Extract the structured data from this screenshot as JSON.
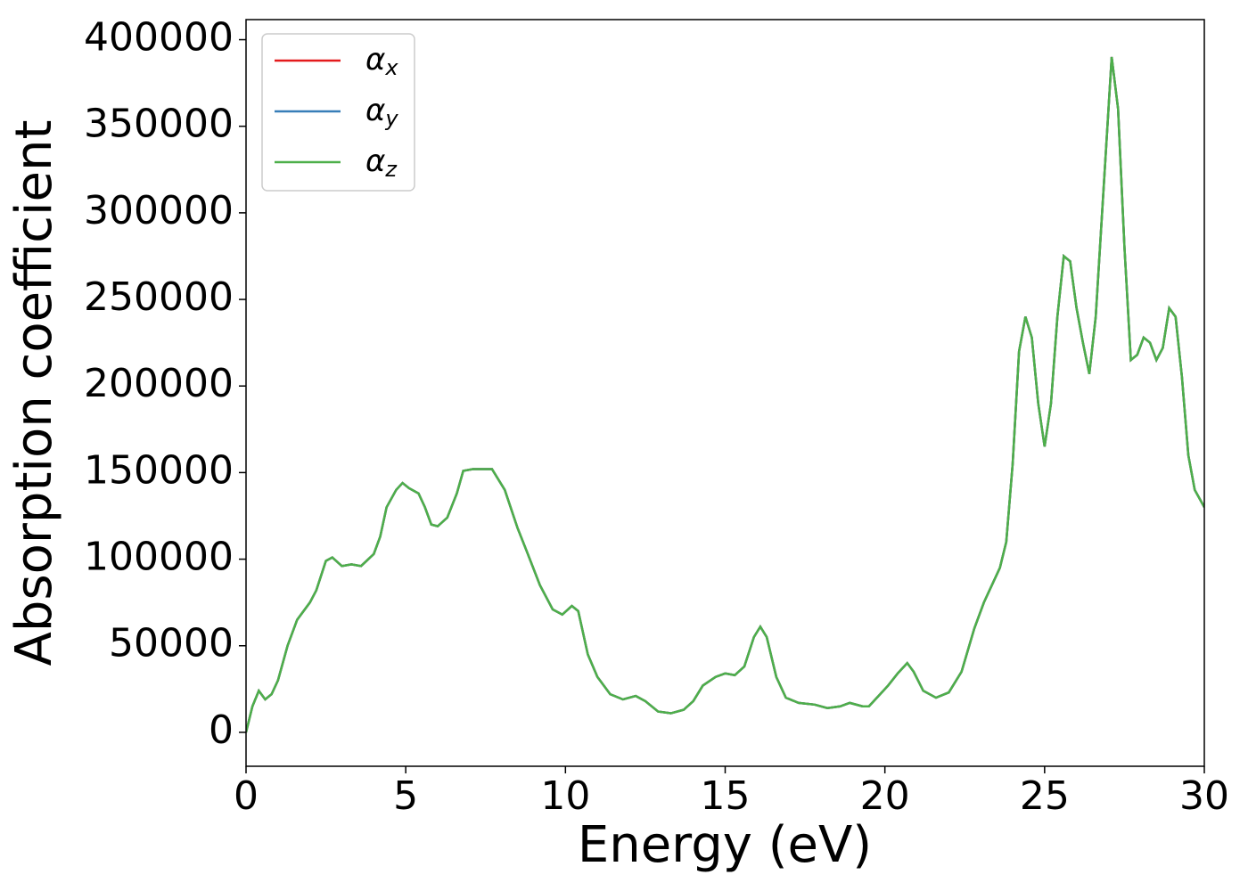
{
  "chart_data": {
    "type": "line",
    "xlabel": "Energy (eV)",
    "ylabel": "Absorption coefficient",
    "x": [
      0,
      0.2,
      0.4,
      0.6,
      0.8,
      1.0,
      1.3,
      1.6,
      2.0,
      2.2,
      2.5,
      2.7,
      3.0,
      3.3,
      3.6,
      4.0,
      4.2,
      4.4,
      4.7,
      4.9,
      5.1,
      5.4,
      5.6,
      5.8,
      6.0,
      6.3,
      6.6,
      6.8,
      7.1,
      7.4,
      7.7,
      8.1,
      8.5,
      8.8,
      9.2,
      9.6,
      9.9,
      10.2,
      10.4,
      10.7,
      11.0,
      11.4,
      11.8,
      12.2,
      12.5,
      12.9,
      13.3,
      13.7,
      14.0,
      14.3,
      14.7,
      15.0,
      15.3,
      15.6,
      15.9,
      16.1,
      16.3,
      16.6,
      16.9,
      17.3,
      17.8,
      18.2,
      18.6,
      18.9,
      19.3,
      19.5,
      19.8,
      20.1,
      20.4,
      20.7,
      20.9,
      21.2,
      21.6,
      22.0,
      22.4,
      22.8,
      23.1,
      23.6,
      23.8,
      24.0,
      24.2,
      24.4,
      24.6,
      24.8,
      25.0,
      25.2,
      25.4,
      25.6,
      25.8,
      26.0,
      26.2,
      26.4,
      26.6,
      26.9,
      27.1,
      27.3,
      27.5,
      27.7,
      27.9,
      28.1,
      28.3,
      28.5,
      28.7,
      28.9,
      29.1,
      29.3,
      29.5,
      29.7,
      30.0
    ],
    "series": [
      {
        "name": "αx",
        "color": "#e41a1c",
        "values": [
          0,
          15000,
          24000,
          19000,
          22000,
          30000,
          50000,
          65000,
          75000,
          82000,
          99000,
          101000,
          96000,
          97000,
          96000,
          103000,
          113000,
          130000,
          140000,
          144000,
          141000,
          138000,
          130000,
          120000,
          119000,
          124000,
          138000,
          151000,
          152000,
          152000,
          152000,
          140000,
          118000,
          104000,
          85000,
          71000,
          68000,
          73000,
          70000,
          45000,
          32000,
          22000,
          19000,
          21000,
          18000,
          12000,
          11000,
          13000,
          18000,
          27000,
          32000,
          34000,
          33000,
          38000,
          55000,
          61000,
          55000,
          32000,
          20000,
          17000,
          16000,
          14000,
          15000,
          17000,
          15000,
          15000,
          21000,
          27000,
          34000,
          40000,
          35000,
          24000,
          20000,
          23000,
          35000,
          60000,
          75000,
          95000,
          110000,
          155000,
          220000,
          240000,
          228000,
          190000,
          165000,
          190000,
          240000,
          275000,
          272000,
          245000,
          225000,
          207000,
          240000,
          330000,
          390000,
          360000,
          280000,
          215000,
          218000,
          228000,
          225000,
          215000,
          222000,
          245000,
          240000,
          205000,
          160000,
          140000,
          130000
        ]
      },
      {
        "name": "αy",
        "color": "#377eb8",
        "values": [
          0,
          15000,
          24000,
          19000,
          22000,
          30000,
          50000,
          65000,
          75000,
          82000,
          99000,
          101000,
          96000,
          97000,
          96000,
          103000,
          113000,
          130000,
          140000,
          144000,
          141000,
          138000,
          130000,
          120000,
          119000,
          124000,
          138000,
          151000,
          152000,
          152000,
          152000,
          140000,
          118000,
          104000,
          85000,
          71000,
          68000,
          73000,
          70000,
          45000,
          32000,
          22000,
          19000,
          21000,
          18000,
          12000,
          11000,
          13000,
          18000,
          27000,
          32000,
          34000,
          33000,
          38000,
          55000,
          61000,
          55000,
          32000,
          20000,
          17000,
          16000,
          14000,
          15000,
          17000,
          15000,
          15000,
          21000,
          27000,
          34000,
          40000,
          35000,
          24000,
          20000,
          23000,
          35000,
          60000,
          75000,
          95000,
          110000,
          155000,
          220000,
          240000,
          228000,
          190000,
          165000,
          190000,
          240000,
          275000,
          272000,
          245000,
          225000,
          207000,
          240000,
          330000,
          390000,
          360000,
          280000,
          215000,
          218000,
          228000,
          225000,
          215000,
          222000,
          245000,
          240000,
          205000,
          160000,
          140000,
          130000
        ]
      },
      {
        "name": "αz",
        "color": "#4daf4a",
        "values": [
          0,
          15000,
          24000,
          19000,
          22000,
          30000,
          50000,
          65000,
          75000,
          82000,
          99000,
          101000,
          96000,
          97000,
          96000,
          103000,
          113000,
          130000,
          140000,
          144000,
          141000,
          138000,
          130000,
          120000,
          119000,
          124000,
          138000,
          151000,
          152000,
          152000,
          152000,
          140000,
          118000,
          104000,
          85000,
          71000,
          68000,
          73000,
          70000,
          45000,
          32000,
          22000,
          19000,
          21000,
          18000,
          12000,
          11000,
          13000,
          18000,
          27000,
          32000,
          34000,
          33000,
          38000,
          55000,
          61000,
          55000,
          32000,
          20000,
          17000,
          16000,
          14000,
          15000,
          17000,
          15000,
          15000,
          21000,
          27000,
          34000,
          40000,
          35000,
          24000,
          20000,
          23000,
          35000,
          60000,
          75000,
          95000,
          110000,
          155000,
          220000,
          240000,
          228000,
          190000,
          165000,
          190000,
          240000,
          275000,
          272000,
          245000,
          225000,
          207000,
          240000,
          330000,
          390000,
          360000,
          280000,
          215000,
          218000,
          228000,
          225000,
          215000,
          222000,
          245000,
          240000,
          205000,
          160000,
          140000,
          130000
        ]
      }
    ],
    "xlim": [
      0,
      30
    ],
    "xticks": [
      0,
      5,
      10,
      15,
      20,
      25,
      30
    ],
    "ylim": [
      -19600,
      411600
    ],
    "yticks": [
      0,
      50000,
      100000,
      150000,
      200000,
      250000,
      300000,
      350000,
      400000
    ],
    "grid": false,
    "legend": "upper left"
  }
}
